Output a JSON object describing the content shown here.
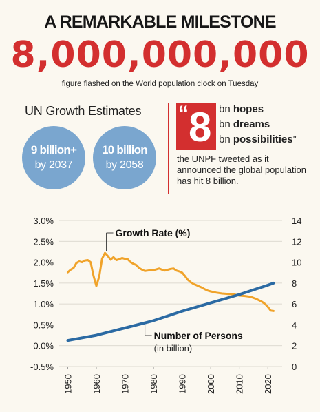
{
  "header": {
    "title": "A REMARKABLE MILESTONE",
    "big_number": "8,000,000,000",
    "subtitle": "figure flashed on the World population clock on Tuesday"
  },
  "estimates": {
    "title": "UN Growth Estimates",
    "items": [
      {
        "top": "9 billion+",
        "bottom": "by 2037"
      },
      {
        "top": "10 billion",
        "bottom": "by 2058"
      }
    ]
  },
  "quote": {
    "open_mark": "“",
    "number": "8",
    "lines": [
      {
        "prefix": "bn",
        "word": "hopes",
        "suffix": ""
      },
      {
        "prefix": "bn",
        "word": "dreams",
        "suffix": ""
      },
      {
        "prefix": "bn",
        "word": "possibilities",
        "suffix": "”"
      }
    ],
    "caption": "the UNPF tweeted as it announced the global population has hit 8 billion."
  },
  "colors": {
    "accent_red": "#d32f2f",
    "bubble_blue": "#7aa6cf",
    "growth_orange": "#f0a32a",
    "persons_blue": "#2b6aa3"
  },
  "chart_data": {
    "type": "line",
    "title": "",
    "xlabel": "",
    "x_ticks": [
      1950,
      1960,
      1970,
      1980,
      1990,
      2000,
      2010,
      2020
    ],
    "xlim": [
      1947,
      2025
    ],
    "y_left": {
      "label": "",
      "lim": [
        -0.5,
        3.0
      ],
      "ticks": [
        "-0.5%",
        "0.0%",
        "0.5%",
        "1.0%",
        "1.5%",
        "2.0%",
        "2.5%",
        "3.0%"
      ],
      "tick_values": [
        -0.5,
        0.0,
        0.5,
        1.0,
        1.5,
        2.0,
        2.5,
        3.0
      ]
    },
    "y_right": {
      "label": "",
      "lim": [
        0,
        14
      ],
      "ticks": [
        "0",
        "2",
        "4",
        "6",
        "8",
        "10",
        "12",
        "14"
      ],
      "tick_values": [
        0,
        2,
        4,
        6,
        8,
        10,
        12,
        14
      ]
    },
    "grid": true,
    "series": [
      {
        "name": "Growth Rate (%)",
        "axis": "left",
        "color": "#f0a32a",
        "points": [
          [
            1950,
            1.76
          ],
          [
            1951,
            1.82
          ],
          [
            1952,
            1.86
          ],
          [
            1953,
            1.98
          ],
          [
            1954,
            2.02
          ],
          [
            1955,
            2.0
          ],
          [
            1956,
            2.04
          ],
          [
            1957,
            2.05
          ],
          [
            1958,
            2.0
          ],
          [
            1959,
            1.68
          ],
          [
            1960,
            1.43
          ],
          [
            1961,
            1.66
          ],
          [
            1962,
            2.08
          ],
          [
            1963,
            2.22
          ],
          [
            1964,
            2.15
          ],
          [
            1965,
            2.06
          ],
          [
            1966,
            2.12
          ],
          [
            1967,
            2.05
          ],
          [
            1968,
            2.07
          ],
          [
            1969,
            2.1
          ],
          [
            1970,
            2.08
          ],
          [
            1971,
            2.07
          ],
          [
            1972,
            2.0
          ],
          [
            1973,
            1.96
          ],
          [
            1974,
            1.93
          ],
          [
            1975,
            1.86
          ],
          [
            1976,
            1.82
          ],
          [
            1977,
            1.79
          ],
          [
            1978,
            1.8
          ],
          [
            1979,
            1.81
          ],
          [
            1980,
            1.81
          ],
          [
            1981,
            1.83
          ],
          [
            1982,
            1.85
          ],
          [
            1983,
            1.82
          ],
          [
            1984,
            1.8
          ],
          [
            1985,
            1.82
          ],
          [
            1986,
            1.84
          ],
          [
            1987,
            1.85
          ],
          [
            1988,
            1.8
          ],
          [
            1989,
            1.78
          ],
          [
            1990,
            1.75
          ],
          [
            1991,
            1.67
          ],
          [
            1992,
            1.58
          ],
          [
            1993,
            1.52
          ],
          [
            1994,
            1.48
          ],
          [
            1995,
            1.45
          ],
          [
            1996,
            1.42
          ],
          [
            1997,
            1.39
          ],
          [
            1998,
            1.35
          ],
          [
            1999,
            1.32
          ],
          [
            2000,
            1.3
          ],
          [
            2002,
            1.27
          ],
          [
            2004,
            1.25
          ],
          [
            2006,
            1.24
          ],
          [
            2008,
            1.23
          ],
          [
            2010,
            1.2
          ],
          [
            2012,
            1.19
          ],
          [
            2014,
            1.17
          ],
          [
            2016,
            1.12
          ],
          [
            2018,
            1.05
          ],
          [
            2019,
            1.0
          ],
          [
            2020,
            0.93
          ],
          [
            2021,
            0.84
          ],
          [
            2022,
            0.83
          ]
        ]
      },
      {
        "name": "Number of Persons",
        "axis": "right",
        "color": "#2b6aa3",
        "points": [
          [
            1950,
            2.5
          ],
          [
            1960,
            3.0
          ],
          [
            1970,
            3.7
          ],
          [
            1980,
            4.4
          ],
          [
            1990,
            5.3
          ],
          [
            2000,
            6.1
          ],
          [
            2010,
            6.9
          ],
          [
            2020,
            7.8
          ],
          [
            2022,
            8.0
          ]
        ]
      }
    ],
    "annotations": [
      {
        "text": "Growth Rate (%)"
      },
      {
        "text": "Number of Persons"
      },
      {
        "text": "(in billion)"
      }
    ]
  }
}
